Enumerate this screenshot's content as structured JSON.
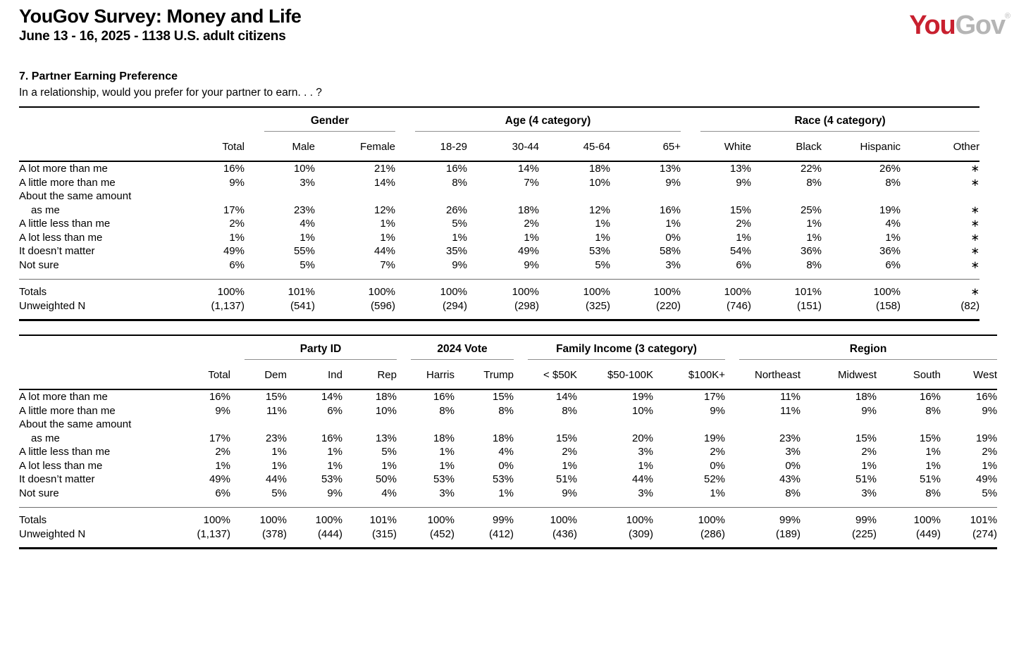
{
  "header": {
    "title": "YouGov Survey: Money and Life",
    "subtitle": "June 13 - 16, 2025 - 1138 U.S. adult citizens",
    "logo": {
      "you": "You",
      "gov": "Gov",
      "registered": "®",
      "red": "#c8202f",
      "gray": "#b5b5b5"
    }
  },
  "question": {
    "title": "7. Partner Earning Preference",
    "text": "In a relationship, would you prefer for your partner to earn. . . ?"
  },
  "tables": [
    {
      "name": "demographics",
      "groups": [
        {
          "label": "",
          "cols": [
            "Total"
          ]
        },
        {
          "label": "Gender",
          "cols": [
            "Male",
            "Female"
          ]
        },
        {
          "label": "Age (4 category)",
          "cols": [
            "18-29",
            "30-44",
            "45-64",
            "65+"
          ]
        },
        {
          "label": "Race (4 category)",
          "cols": [
            "White",
            "Black",
            "Hispanic",
            "Other"
          ]
        }
      ],
      "rows": [
        {
          "label": "A lot more than me",
          "values": [
            "16%",
            "10%",
            "21%",
            "16%",
            "14%",
            "18%",
            "13%",
            "13%",
            "22%",
            "26%",
            "∗"
          ]
        },
        {
          "label": "A little more than me",
          "values": [
            "9%",
            "3%",
            "14%",
            "8%",
            "7%",
            "10%",
            "9%",
            "9%",
            "8%",
            "8%",
            "∗"
          ]
        },
        {
          "label": "About the same amount\nas me",
          "values": [
            "17%",
            "23%",
            "12%",
            "26%",
            "18%",
            "12%",
            "16%",
            "15%",
            "25%",
            "19%",
            "∗"
          ]
        },
        {
          "label": "A little less than me",
          "values": [
            "2%",
            "4%",
            "1%",
            "5%",
            "2%",
            "1%",
            "1%",
            "2%",
            "1%",
            "4%",
            "∗"
          ]
        },
        {
          "label": "A lot less than me",
          "values": [
            "1%",
            "1%",
            "1%",
            "1%",
            "1%",
            "1%",
            "0%",
            "1%",
            "1%",
            "1%",
            "∗"
          ]
        },
        {
          "label": "It doesn’t matter",
          "values": [
            "49%",
            "55%",
            "44%",
            "35%",
            "49%",
            "53%",
            "58%",
            "54%",
            "36%",
            "36%",
            "∗"
          ]
        },
        {
          "label": "Not sure",
          "values": [
            "6%",
            "5%",
            "7%",
            "9%",
            "9%",
            "5%",
            "3%",
            "6%",
            "8%",
            "6%",
            "∗"
          ]
        }
      ],
      "totals": {
        "label": "Totals",
        "values": [
          "100%",
          "101%",
          "100%",
          "100%",
          "100%",
          "100%",
          "100%",
          "100%",
          "101%",
          "100%",
          "∗"
        ]
      },
      "unweighted": {
        "label": "Unweighted N",
        "values": [
          "(1,137)",
          "(541)",
          "(596)",
          "(294)",
          "(298)",
          "(325)",
          "(220)",
          "(746)",
          "(151)",
          "(158)",
          "(82)"
        ]
      }
    },
    {
      "name": "politics",
      "groups": [
        {
          "label": "",
          "cols": [
            "Total"
          ]
        },
        {
          "label": "Party ID",
          "cols": [
            "Dem",
            "Ind",
            "Rep"
          ]
        },
        {
          "label": "2024 Vote",
          "cols": [
            "Harris",
            "Trump"
          ]
        },
        {
          "label": "Family Income (3 category)",
          "cols": [
            "< $50K",
            "$50-100K",
            "$100K+"
          ]
        },
        {
          "label": "Region",
          "cols": [
            "Northeast",
            "Midwest",
            "South",
            "West"
          ]
        }
      ],
      "rows": [
        {
          "label": "A lot more than me",
          "values": [
            "16%",
            "15%",
            "14%",
            "18%",
            "16%",
            "15%",
            "14%",
            "19%",
            "17%",
            "11%",
            "18%",
            "16%",
            "16%"
          ]
        },
        {
          "label": "A little more than me",
          "values": [
            "9%",
            "11%",
            "6%",
            "10%",
            "8%",
            "8%",
            "8%",
            "10%",
            "9%",
            "11%",
            "9%",
            "8%",
            "9%"
          ]
        },
        {
          "label": "About the same amount\nas me",
          "values": [
            "17%",
            "23%",
            "16%",
            "13%",
            "18%",
            "18%",
            "15%",
            "20%",
            "19%",
            "23%",
            "15%",
            "15%",
            "19%"
          ]
        },
        {
          "label": "A little less than me",
          "values": [
            "2%",
            "1%",
            "1%",
            "5%",
            "1%",
            "4%",
            "2%",
            "3%",
            "2%",
            "3%",
            "2%",
            "1%",
            "2%"
          ]
        },
        {
          "label": "A lot less than me",
          "values": [
            "1%",
            "1%",
            "1%",
            "1%",
            "1%",
            "0%",
            "1%",
            "1%",
            "0%",
            "0%",
            "1%",
            "1%",
            "1%"
          ]
        },
        {
          "label": "It doesn’t matter",
          "values": [
            "49%",
            "44%",
            "53%",
            "50%",
            "53%",
            "53%",
            "51%",
            "44%",
            "52%",
            "43%",
            "51%",
            "51%",
            "49%"
          ]
        },
        {
          "label": "Not sure",
          "values": [
            "6%",
            "5%",
            "9%",
            "4%",
            "3%",
            "1%",
            "9%",
            "3%",
            "1%",
            "8%",
            "3%",
            "8%",
            "5%"
          ]
        }
      ],
      "totals": {
        "label": "Totals",
        "values": [
          "100%",
          "100%",
          "100%",
          "101%",
          "100%",
          "99%",
          "100%",
          "100%",
          "100%",
          "99%",
          "99%",
          "100%",
          "101%"
        ]
      },
      "unweighted": {
        "label": "Unweighted N",
        "values": [
          "(1,137)",
          "(378)",
          "(444)",
          "(315)",
          "(452)",
          "(412)",
          "(436)",
          "(309)",
          "(286)",
          "(189)",
          "(225)",
          "(449)",
          "(274)"
        ]
      }
    }
  ]
}
